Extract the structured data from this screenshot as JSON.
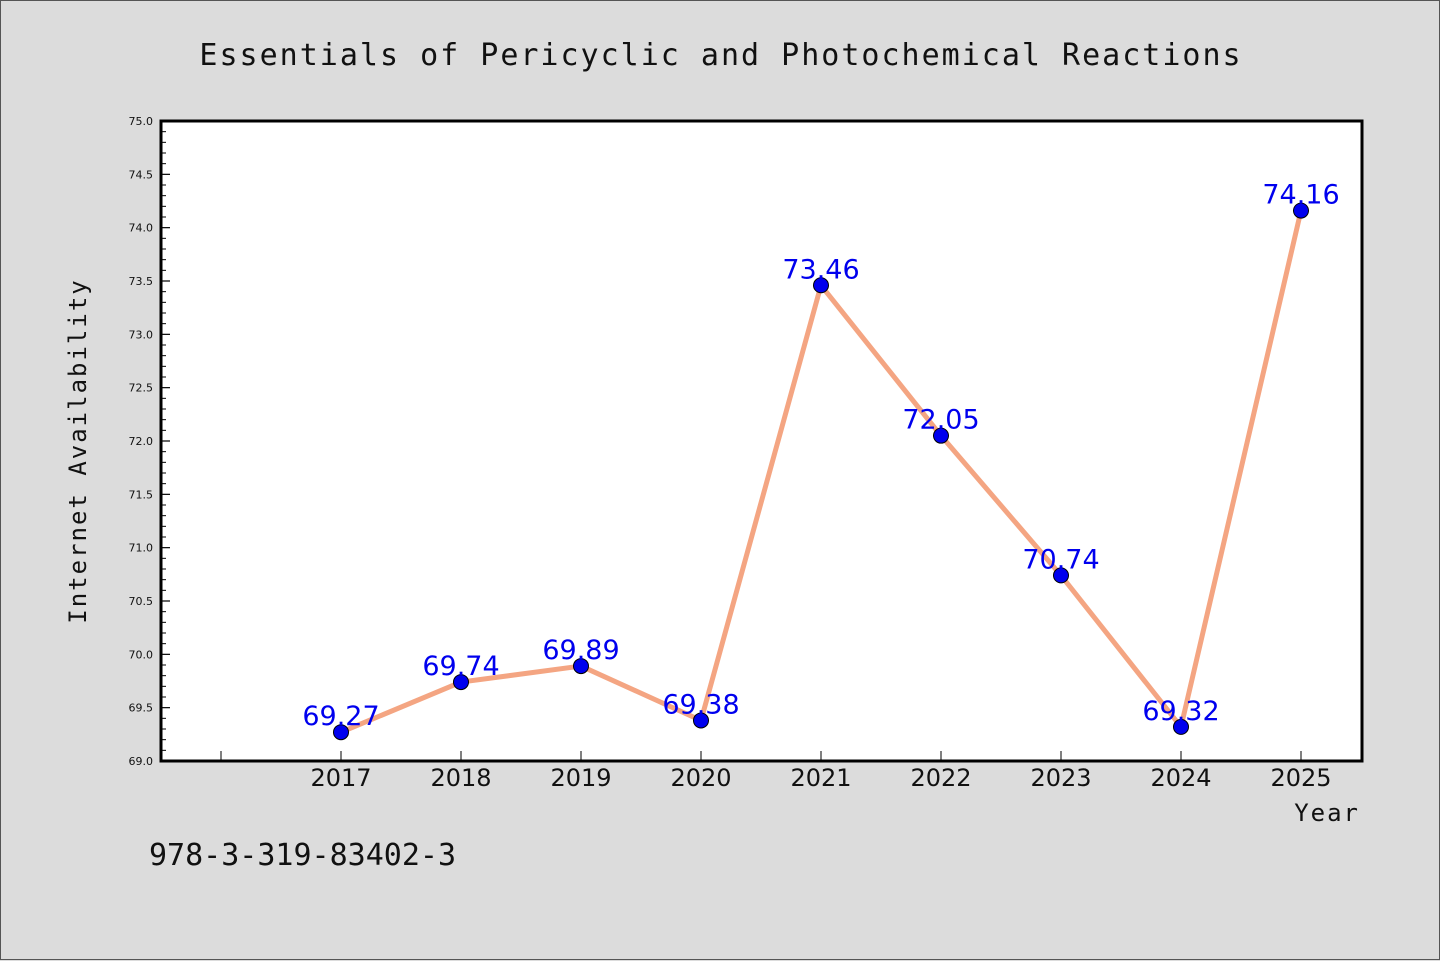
{
  "chart_data": {
    "type": "line",
    "title": "Essentials of Pericyclic and Photochemical Reactions",
    "xlabel": "Year",
    "ylabel": "Internet Availability",
    "categories": [
      "2017",
      "2018",
      "2019",
      "2020",
      "2021",
      "2022",
      "2023",
      "2024",
      "2025"
    ],
    "values": [
      69.27,
      69.74,
      69.89,
      69.38,
      73.46,
      72.05,
      70.74,
      69.32,
      74.16
    ],
    "value_labels": [
      "69.27",
      "69.74",
      "69.89",
      "69.38",
      "73.46",
      "72.05",
      "70.74",
      "69.32",
      "74.16"
    ],
    "ylim": [
      69.0,
      75.0
    ],
    "y_ticks": [
      "69.0",
      "69.5",
      "70.0",
      "70.5",
      "71.0",
      "71.5",
      "72.0",
      "72.5",
      "73.0",
      "73.5",
      "74.0",
      "74.5",
      "75.0"
    ],
    "grid": false,
    "line_color": "#f4a582",
    "marker_color": "#0000ee",
    "label_color": "#0000ee"
  },
  "footer": {
    "isbn": "978-3-319-83402-3"
  }
}
